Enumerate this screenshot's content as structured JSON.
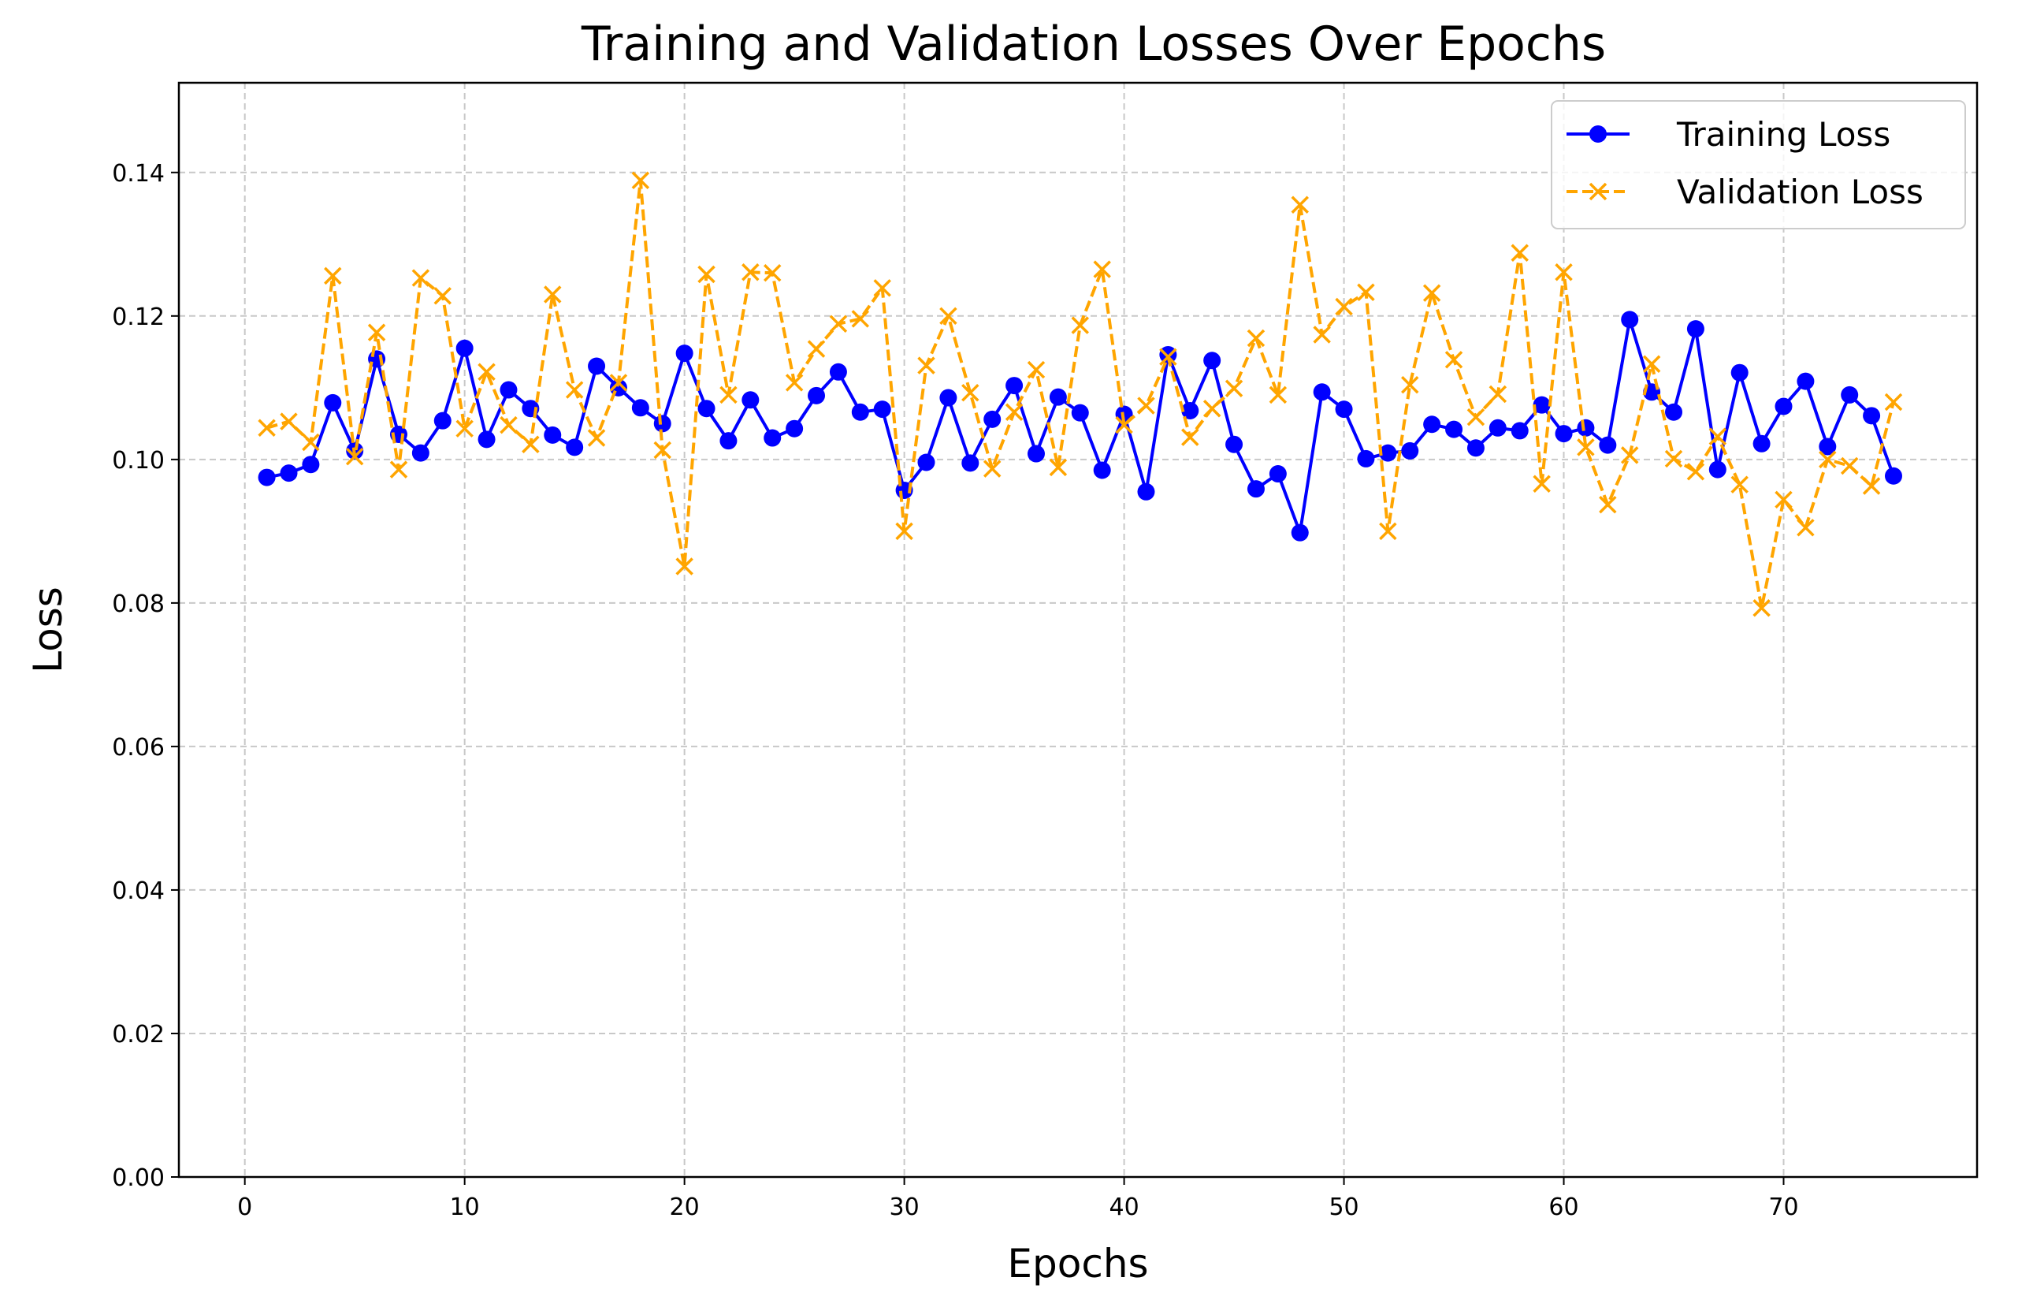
{
  "chart_data": {
    "type": "line",
    "title": "Training and Validation Losses Over Epochs",
    "xlabel": "Epochs",
    "ylabel": "Loss",
    "xlim": [
      -3,
      78.8
    ],
    "ylim": [
      0,
      0.1525
    ],
    "xticks": [
      0,
      10,
      20,
      30,
      40,
      50,
      60,
      70
    ],
    "yticks": [
      0.0,
      0.02,
      0.04,
      0.06,
      0.08,
      0.1,
      0.12,
      0.14
    ],
    "grid": true,
    "legend_position": "top-right",
    "x": [
      1,
      2,
      3,
      4,
      5,
      6,
      7,
      8,
      9,
      10,
      11,
      12,
      13,
      14,
      15,
      16,
      17,
      18,
      19,
      20,
      21,
      22,
      23,
      24,
      25,
      26,
      27,
      28,
      29,
      30,
      31,
      32,
      33,
      34,
      35,
      36,
      37,
      38,
      39,
      40,
      41,
      42,
      43,
      44,
      45,
      46,
      47,
      48,
      49,
      50,
      51,
      52,
      53,
      54,
      55,
      56,
      57,
      58,
      59,
      60,
      61,
      62,
      63,
      64,
      65,
      66,
      67,
      68,
      69,
      70,
      71,
      72,
      73,
      74,
      75
    ],
    "series": [
      {
        "name": "Training Loss",
        "color": "#0000ff",
        "marker": "circle",
        "linestyle": "solid",
        "values": [
          0.0975,
          0.0981,
          0.0993,
          0.1079,
          0.1012,
          0.114,
          0.1035,
          0.1009,
          0.1054,
          0.1155,
          0.1028,
          0.1097,
          0.1071,
          0.1034,
          0.1017,
          0.113,
          0.11,
          0.1072,
          0.105,
          0.1148,
          0.1071,
          0.1026,
          0.1083,
          0.103,
          0.1043,
          0.1089,
          0.1122,
          0.1066,
          0.107,
          0.0957,
          0.0996,
          0.1086,
          0.0995,
          0.1056,
          0.1103,
          0.1008,
          0.1087,
          0.1065,
          0.0985,
          0.1063,
          0.0955,
          0.1146,
          0.1068,
          0.1138,
          0.1021,
          0.0959,
          0.098,
          0.0898,
          0.1094,
          0.107,
          0.1001,
          0.1009,
          0.1012,
          0.1049,
          0.1042,
          0.1016,
          0.1044,
          0.104,
          0.1076,
          0.1036,
          0.1044,
          0.102,
          0.1195,
          0.1094,
          0.1066,
          0.1182,
          0.0986,
          0.1121,
          0.1022,
          0.1074,
          0.1109,
          0.1018,
          0.109,
          0.1061,
          0.0977
        ]
      },
      {
        "name": "Validation Loss",
        "color": "#ffa500",
        "marker": "x",
        "linestyle": "dashed",
        "values": [
          0.1044,
          0.1053,
          0.1024,
          0.1256,
          0.1004,
          0.1177,
          0.0986,
          0.1253,
          0.1228,
          0.1043,
          0.1122,
          0.1048,
          0.1021,
          0.123,
          0.1097,
          0.103,
          0.1107,
          0.1389,
          0.1013,
          0.0851,
          0.1258,
          0.109,
          0.1261,
          0.126,
          0.1107,
          0.1154,
          0.1189,
          0.1196,
          0.1239,
          0.09,
          0.1131,
          0.12,
          0.1093,
          0.0987,
          0.1066,
          0.1125,
          0.0989,
          0.1187,
          0.1265,
          0.1048,
          0.1075,
          0.1143,
          0.1031,
          0.1071,
          0.1099,
          0.1169,
          0.109,
          0.1355,
          0.1174,
          0.1213,
          0.1233,
          0.09,
          0.1104,
          0.1232,
          0.1139,
          0.1059,
          0.1091,
          0.1288,
          0.0966,
          0.1261,
          0.1017,
          0.0937,
          0.1006,
          0.1133,
          0.1001,
          0.0983,
          0.1032,
          0.0965,
          0.0793,
          0.0944,
          0.0905,
          0.1,
          0.0991,
          0.0963,
          0.108
        ]
      }
    ]
  }
}
